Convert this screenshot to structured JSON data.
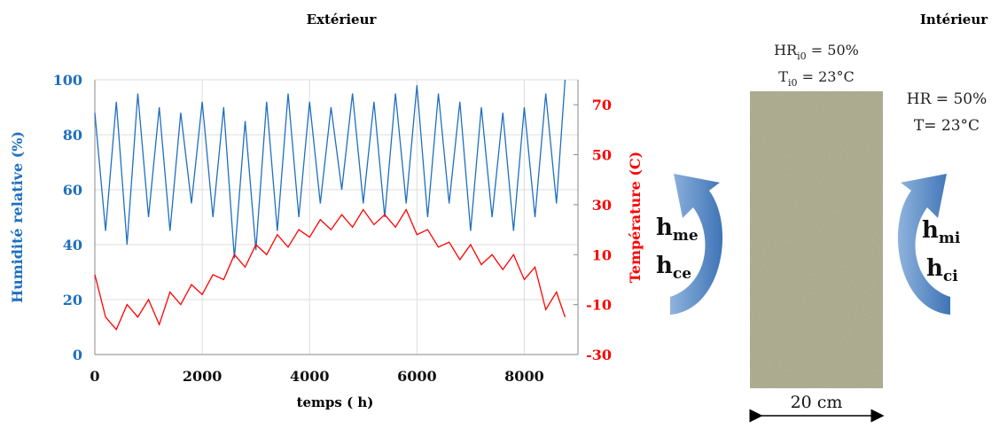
{
  "chart_data": {
    "type": "line",
    "title_left": "Extérieur",
    "xlabel": "temps ( h)",
    "ylabel": "Humidité relative (%)",
    "y2label": "Température (C)",
    "x": [
      0,
      200,
      400,
      600,
      800,
      1000,
      1200,
      1400,
      1600,
      1800,
      2000,
      2200,
      2400,
      2600,
      2800,
      3000,
      3200,
      3400,
      3600,
      3800,
      4000,
      4200,
      4400,
      4600,
      4800,
      5000,
      5200,
      5400,
      5600,
      5800,
      6000,
      6200,
      6400,
      6600,
      6800,
      7000,
      7200,
      7400,
      7600,
      7800,
      8000,
      8200,
      8400,
      8600,
      8760
    ],
    "series": [
      {
        "name": "Humidité relative",
        "color": "#1f6fc0",
        "axis": "y",
        "values": [
          88,
          45,
          92,
          40,
          95,
          50,
          90,
          45,
          88,
          55,
          92,
          50,
          90,
          35,
          85,
          38,
          92,
          45,
          95,
          50,
          92,
          55,
          90,
          60,
          95,
          55,
          92,
          50,
          95,
          55,
          98,
          50,
          95,
          55,
          92,
          45,
          90,
          50,
          88,
          45,
          90,
          50,
          95,
          55,
          100
        ]
      },
      {
        "name": "Température",
        "color": "#ff0000",
        "axis": "y2",
        "values": [
          2,
          -15,
          -20,
          -10,
          -15,
          -8,
          -18,
          -5,
          -10,
          -2,
          -6,
          2,
          0,
          10,
          5,
          14,
          10,
          18,
          13,
          20,
          17,
          24,
          20,
          26,
          21,
          28,
          22,
          26,
          21,
          28,
          18,
          20,
          13,
          15,
          8,
          14,
          6,
          10,
          4,
          10,
          0,
          5,
          -12,
          -5,
          -15
        ]
      }
    ],
    "xlim": [
      0,
      9000
    ],
    "xticks": [
      0,
      2000,
      4000,
      6000,
      8000
    ],
    "ylim": [
      0,
      100
    ],
    "yticks": [
      0,
      20,
      40,
      60,
      80,
      100
    ],
    "y2lim": [
      -30,
      80
    ],
    "y2ticks": [
      -30,
      -10,
      10,
      30,
      50,
      70
    ],
    "grid": true
  },
  "diagram": {
    "title_right": "Intérieur",
    "initial_hr": {
      "base": "HR",
      "sub": "i0",
      "rest": " = 50%"
    },
    "initial_t": {
      "base": "T",
      "sub": "i0",
      "rest": " = 23°C"
    },
    "interior_hr": "HR = 50%",
    "interior_t": "T= 23°C",
    "h_me": {
      "base": "h",
      "sub": "me"
    },
    "h_ce": {
      "base": "h",
      "sub": "ce"
    },
    "h_mi": {
      "base": "h",
      "sub": "mi"
    },
    "h_ci": {
      "base": "h",
      "sub": "ci"
    },
    "thickness": "20 cm"
  }
}
